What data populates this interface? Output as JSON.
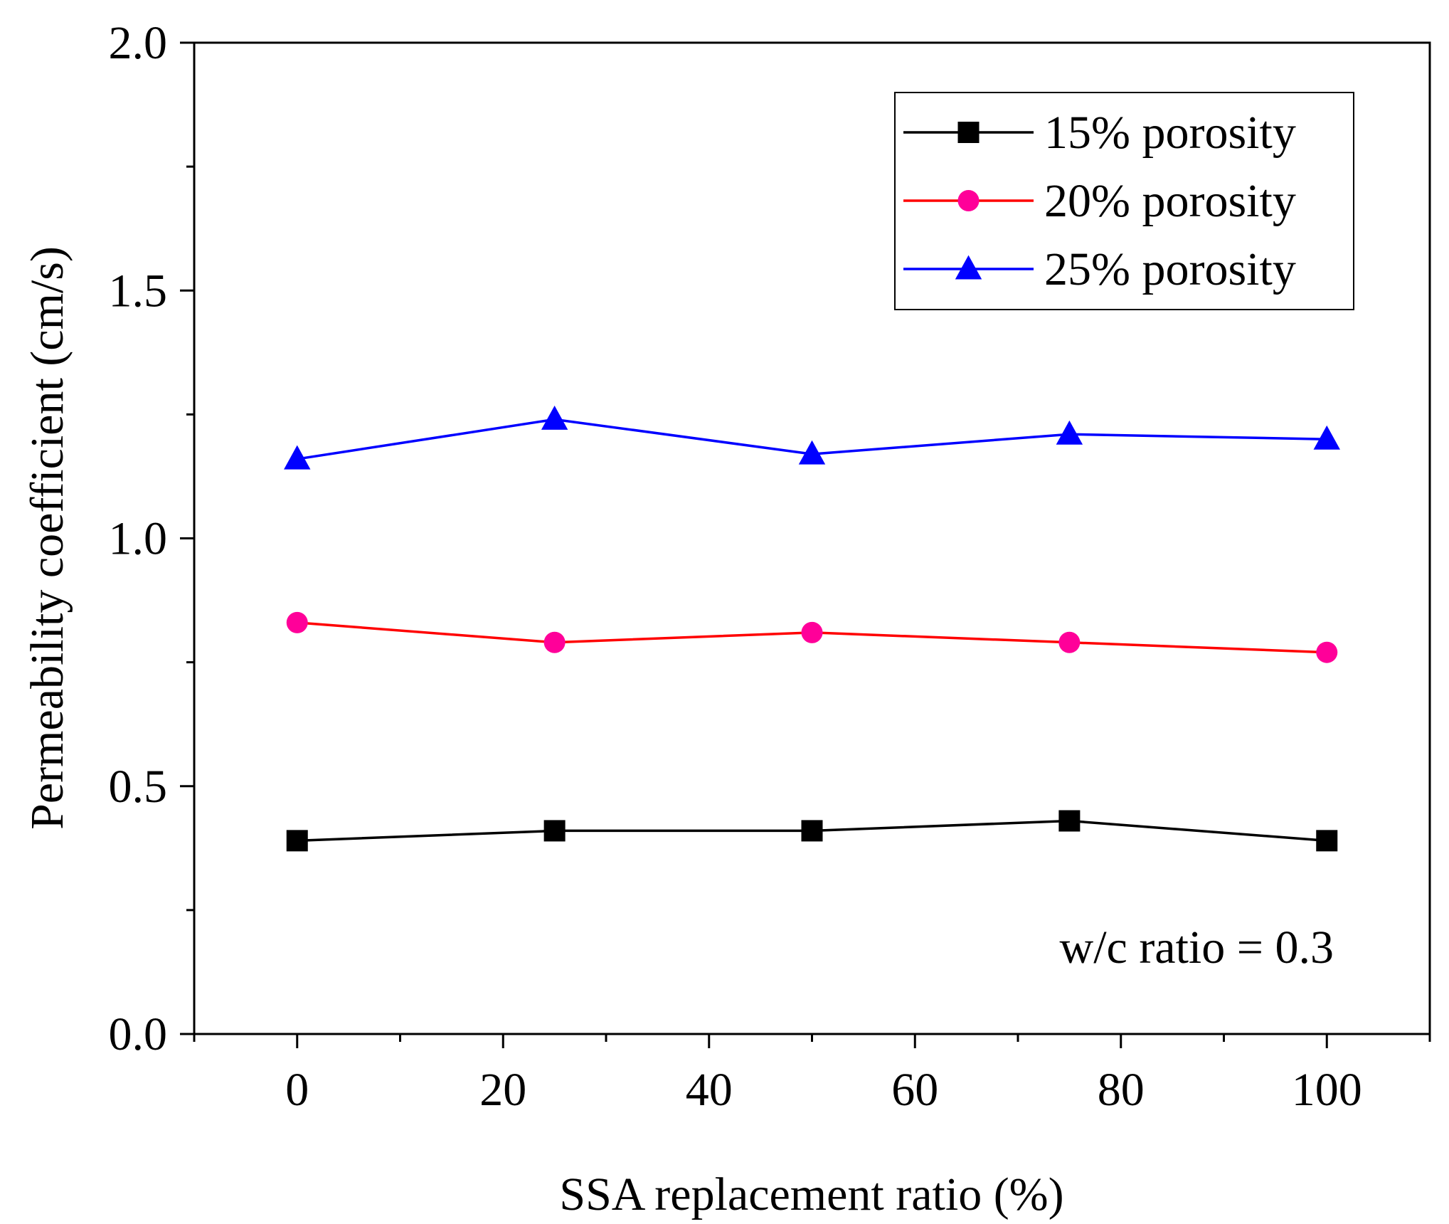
{
  "chart_data": {
    "type": "line",
    "title": "",
    "xlabel": "SSA replacement ratio (%)",
    "ylabel": "Permeability coefficient (cm/s)",
    "xlim": [
      -10,
      110
    ],
    "ylim": [
      0.0,
      2.0
    ],
    "x_ticks": [
      0,
      20,
      40,
      60,
      80,
      100
    ],
    "x_tick_labels": [
      "0",
      "20",
      "40",
      "60",
      "80",
      "100"
    ],
    "x_minor_ticks": [
      -10,
      10,
      30,
      50,
      70,
      90,
      110
    ],
    "y_ticks": [
      0.0,
      0.5,
      1.0,
      1.5,
      2.0
    ],
    "y_tick_labels": [
      "0.0",
      "0.5",
      "1.0",
      "1.5",
      "2.0"
    ],
    "y_minor_ticks": [
      0.25,
      0.75,
      1.25,
      1.75
    ],
    "grid": false,
    "legend_position": "top-right",
    "x": [
      0,
      25,
      50,
      75,
      100
    ],
    "series": [
      {
        "name": "15% porosity",
        "values": [
          0.39,
          0.41,
          0.41,
          0.43,
          0.39
        ],
        "color": "#000000",
        "marker_color": "#000000",
        "marker": "square"
      },
      {
        "name": "20% porosity",
        "values": [
          0.83,
          0.79,
          0.81,
          0.79,
          0.77
        ],
        "color": "#ff0000",
        "marker_color": "#ff0099",
        "marker": "circle"
      },
      {
        "name": "25% porosity",
        "values": [
          1.16,
          1.24,
          1.17,
          1.21,
          1.2
        ],
        "color": "#0000ff",
        "marker_color": "#0000ff",
        "marker": "triangle"
      }
    ],
    "annotations": [
      {
        "text": "w/c ratio = 0.3"
      }
    ]
  }
}
